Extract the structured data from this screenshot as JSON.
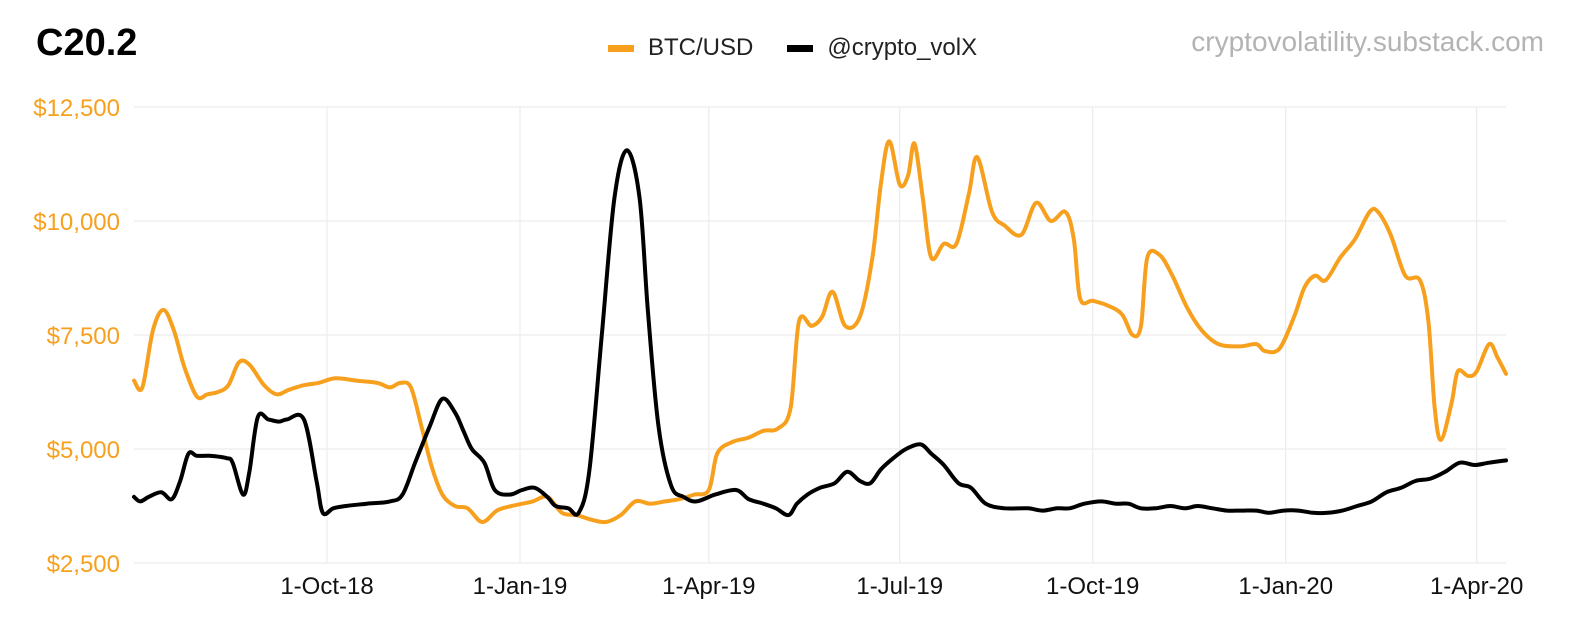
{
  "header": {
    "title": "C20.2",
    "source": "cryptovolatility.substack.com"
  },
  "chart_data": {
    "type": "line",
    "legend_position": "top-center",
    "grid": true,
    "ylim": [
      2500,
      12500
    ],
    "xlim": [
      "2018-07-01",
      "2020-04-15"
    ],
    "y_ticks": [
      {
        "value": 2500,
        "label": "$2,500"
      },
      {
        "value": 5000,
        "label": "$5,000"
      },
      {
        "value": 7500,
        "label": "$7,500"
      },
      {
        "value": 10000,
        "label": "$10,000"
      },
      {
        "value": 12500,
        "label": "$12,500"
      }
    ],
    "x_ticks": [
      {
        "value": "2018-10-01",
        "label": "1-Oct-18"
      },
      {
        "value": "2019-01-01",
        "label": "1-Jan-19"
      },
      {
        "value": "2019-04-01",
        "label": "1-Apr-19"
      },
      {
        "value": "2019-07-01",
        "label": "1-Jul-19"
      },
      {
        "value": "2019-10-01",
        "label": "1-Oct-19"
      },
      {
        "value": "2020-01-01",
        "label": "1-Jan-20"
      },
      {
        "value": "2020-04-01",
        "label": "1-Apr-20"
      }
    ],
    "series": [
      {
        "name": "BTC/USD",
        "color": "#f7a01e",
        "points": [
          [
            "2018-07-01",
            6500
          ],
          [
            "2018-07-05",
            6350
          ],
          [
            "2018-07-10",
            7600
          ],
          [
            "2018-07-15",
            8050
          ],
          [
            "2018-07-20",
            7600
          ],
          [
            "2018-07-25",
            6800
          ],
          [
            "2018-07-31",
            6150
          ],
          [
            "2018-08-05",
            6200
          ],
          [
            "2018-08-10",
            6250
          ],
          [
            "2018-08-15",
            6400
          ],
          [
            "2018-08-20",
            6900
          ],
          [
            "2018-08-25",
            6850
          ],
          [
            "2018-09-01",
            6400
          ],
          [
            "2018-09-07",
            6200
          ],
          [
            "2018-09-13",
            6300
          ],
          [
            "2018-09-20",
            6400
          ],
          [
            "2018-09-27",
            6450
          ],
          [
            "2018-10-05",
            6550
          ],
          [
            "2018-10-15",
            6500
          ],
          [
            "2018-10-25",
            6450
          ],
          [
            "2018-10-31",
            6350
          ],
          [
            "2018-11-05",
            6450
          ],
          [
            "2018-11-10",
            6350
          ],
          [
            "2018-11-15",
            5500
          ],
          [
            "2018-11-20",
            4600
          ],
          [
            "2018-11-25",
            4000
          ],
          [
            "2018-12-01",
            3750
          ],
          [
            "2018-12-07",
            3700
          ],
          [
            "2018-12-14",
            3400
          ],
          [
            "2018-12-21",
            3650
          ],
          [
            "2018-12-28",
            3750
          ],
          [
            "2019-01-07",
            3850
          ],
          [
            "2019-01-14",
            3950
          ],
          [
            "2019-01-21",
            3600
          ],
          [
            "2019-01-28",
            3550
          ],
          [
            "2019-02-04",
            3450
          ],
          [
            "2019-02-11",
            3400
          ],
          [
            "2019-02-18",
            3550
          ],
          [
            "2019-02-25",
            3850
          ],
          [
            "2019-03-04",
            3800
          ],
          [
            "2019-03-11",
            3850
          ],
          [
            "2019-03-18",
            3900
          ],
          [
            "2019-03-25",
            4000
          ],
          [
            "2019-04-01",
            4100
          ],
          [
            "2019-04-05",
            4900
          ],
          [
            "2019-04-12",
            5150
          ],
          [
            "2019-04-20",
            5250
          ],
          [
            "2019-04-27",
            5400
          ],
          [
            "2019-05-04",
            5450
          ],
          [
            "2019-05-10",
            5900
          ],
          [
            "2019-05-14",
            7800
          ],
          [
            "2019-05-20",
            7700
          ],
          [
            "2019-05-25",
            7900
          ],
          [
            "2019-05-30",
            8450
          ],
          [
            "2019-06-05",
            7700
          ],
          [
            "2019-06-12",
            7900
          ],
          [
            "2019-06-18",
            9200
          ],
          [
            "2019-06-22",
            10800
          ],
          [
            "2019-06-26",
            11750
          ],
          [
            "2019-07-01",
            10800
          ],
          [
            "2019-07-05",
            11000
          ],
          [
            "2019-07-08",
            11700
          ],
          [
            "2019-07-12",
            10500
          ],
          [
            "2019-07-16",
            9200
          ],
          [
            "2019-07-22",
            9500
          ],
          [
            "2019-07-28",
            9500
          ],
          [
            "2019-08-03",
            10600
          ],
          [
            "2019-08-07",
            11400
          ],
          [
            "2019-08-14",
            10200
          ],
          [
            "2019-08-20",
            9900
          ],
          [
            "2019-08-28",
            9700
          ],
          [
            "2019-09-04",
            10400
          ],
          [
            "2019-09-11",
            10000
          ],
          [
            "2019-09-18",
            10200
          ],
          [
            "2019-09-22",
            9600
          ],
          [
            "2019-09-25",
            8300
          ],
          [
            "2019-10-01",
            8250
          ],
          [
            "2019-10-08",
            8150
          ],
          [
            "2019-10-15",
            7950
          ],
          [
            "2019-10-20",
            7500
          ],
          [
            "2019-10-24",
            7700
          ],
          [
            "2019-10-27",
            9200
          ],
          [
            "2019-11-02",
            9250
          ],
          [
            "2019-11-08",
            8800
          ],
          [
            "2019-11-15",
            8100
          ],
          [
            "2019-11-22",
            7600
          ],
          [
            "2019-11-30",
            7300
          ],
          [
            "2019-12-10",
            7250
          ],
          [
            "2019-12-18",
            7300
          ],
          [
            "2019-12-22",
            7150
          ],
          [
            "2019-12-29",
            7200
          ],
          [
            "2020-01-05",
            7900
          ],
          [
            "2020-01-10",
            8550
          ],
          [
            "2020-01-15",
            8800
          ],
          [
            "2020-01-20",
            8700
          ],
          [
            "2020-01-27",
            9200
          ],
          [
            "2020-02-03",
            9600
          ],
          [
            "2020-02-10",
            10200
          ],
          [
            "2020-02-14",
            10200
          ],
          [
            "2020-02-20",
            9700
          ],
          [
            "2020-02-27",
            8800
          ],
          [
            "2020-03-05",
            8700
          ],
          [
            "2020-03-09",
            7800
          ],
          [
            "2020-03-12",
            5900
          ],
          [
            "2020-03-15",
            5200
          ],
          [
            "2020-03-20",
            6000
          ],
          [
            "2020-03-23",
            6700
          ],
          [
            "2020-03-28",
            6600
          ],
          [
            "2020-04-01",
            6700
          ],
          [
            "2020-04-07",
            7300
          ],
          [
            "2020-04-11",
            7000
          ],
          [
            "2020-04-15",
            6650
          ]
        ]
      },
      {
        "name": "@crypto_volX",
        "color": "#000000",
        "points": [
          [
            "2018-07-01",
            3950
          ],
          [
            "2018-07-04",
            3850
          ],
          [
            "2018-07-08",
            3950
          ],
          [
            "2018-07-14",
            4050
          ],
          [
            "2018-07-19",
            3900
          ],
          [
            "2018-07-23",
            4300
          ],
          [
            "2018-07-27",
            4900
          ],
          [
            "2018-07-31",
            4850
          ],
          [
            "2018-08-06",
            4850
          ],
          [
            "2018-08-14",
            4800
          ],
          [
            "2018-08-17",
            4700
          ],
          [
            "2018-08-22",
            4000
          ],
          [
            "2018-08-25",
            4500
          ],
          [
            "2018-08-29",
            5700
          ],
          [
            "2018-09-03",
            5650
          ],
          [
            "2018-09-08",
            5600
          ],
          [
            "2018-09-12",
            5650
          ],
          [
            "2018-09-20",
            5650
          ],
          [
            "2018-09-26",
            4300
          ],
          [
            "2018-09-29",
            3600
          ],
          [
            "2018-10-04",
            3700
          ],
          [
            "2018-10-10",
            3750
          ],
          [
            "2018-10-20",
            3800
          ],
          [
            "2018-10-31",
            3850
          ],
          [
            "2018-11-06",
            4000
          ],
          [
            "2018-11-12",
            4700
          ],
          [
            "2018-11-19",
            5500
          ],
          [
            "2018-11-25",
            6100
          ],
          [
            "2018-12-01",
            5800
          ],
          [
            "2018-12-05",
            5400
          ],
          [
            "2018-12-09",
            5000
          ],
          [
            "2018-12-15",
            4700
          ],
          [
            "2018-12-20",
            4100
          ],
          [
            "2018-12-27",
            4000
          ],
          [
            "2019-01-02",
            4100
          ],
          [
            "2019-01-08",
            4150
          ],
          [
            "2019-01-14",
            3950
          ],
          [
            "2019-01-18",
            3750
          ],
          [
            "2019-01-24",
            3700
          ],
          [
            "2019-01-29",
            3600
          ],
          [
            "2019-02-03",
            4500
          ],
          [
            "2019-02-09",
            7500
          ],
          [
            "2019-02-15",
            10500
          ],
          [
            "2019-02-21",
            11550
          ],
          [
            "2019-02-27",
            10500
          ],
          [
            "2019-03-03",
            8000
          ],
          [
            "2019-03-08",
            5500
          ],
          [
            "2019-03-14",
            4200
          ],
          [
            "2019-03-20",
            3950
          ],
          [
            "2019-03-26",
            3850
          ],
          [
            "2019-04-04",
            4000
          ],
          [
            "2019-04-14",
            4100
          ],
          [
            "2019-04-20",
            3900
          ],
          [
            "2019-04-27",
            3800
          ],
          [
            "2019-05-03",
            3700
          ],
          [
            "2019-05-09",
            3550
          ],
          [
            "2019-05-13",
            3800
          ],
          [
            "2019-05-18",
            4000
          ],
          [
            "2019-05-24",
            4150
          ],
          [
            "2019-05-31",
            4250
          ],
          [
            "2019-06-06",
            4500
          ],
          [
            "2019-06-12",
            4300
          ],
          [
            "2019-06-17",
            4250
          ],
          [
            "2019-06-22",
            4550
          ],
          [
            "2019-06-28",
            4800
          ],
          [
            "2019-07-04",
            5000
          ],
          [
            "2019-07-11",
            5100
          ],
          [
            "2019-07-16",
            4900
          ],
          [
            "2019-07-22",
            4650
          ],
          [
            "2019-07-29",
            4250
          ],
          [
            "2019-08-04",
            4150
          ],
          [
            "2019-08-11",
            3800
          ],
          [
            "2019-08-20",
            3700
          ],
          [
            "2019-08-31",
            3700
          ],
          [
            "2019-09-07",
            3650
          ],
          [
            "2019-09-14",
            3700
          ],
          [
            "2019-09-20",
            3700
          ],
          [
            "2019-09-27",
            3800
          ],
          [
            "2019-10-05",
            3850
          ],
          [
            "2019-10-12",
            3800
          ],
          [
            "2019-10-18",
            3800
          ],
          [
            "2019-10-24",
            3700
          ],
          [
            "2019-10-31",
            3700
          ],
          [
            "2019-11-07",
            3750
          ],
          [
            "2019-11-14",
            3700
          ],
          [
            "2019-11-20",
            3750
          ],
          [
            "2019-11-27",
            3700
          ],
          [
            "2019-12-04",
            3650
          ],
          [
            "2019-12-11",
            3650
          ],
          [
            "2019-12-18",
            3650
          ],
          [
            "2019-12-24",
            3600
          ],
          [
            "2019-12-31",
            3650
          ],
          [
            "2020-01-07",
            3650
          ],
          [
            "2020-01-14",
            3600
          ],
          [
            "2020-01-21",
            3600
          ],
          [
            "2020-01-28",
            3650
          ],
          [
            "2020-02-04",
            3750
          ],
          [
            "2020-02-11",
            3850
          ],
          [
            "2020-02-18",
            4050
          ],
          [
            "2020-02-25",
            4150
          ],
          [
            "2020-03-03",
            4300
          ],
          [
            "2020-03-10",
            4350
          ],
          [
            "2020-03-17",
            4500
          ],
          [
            "2020-03-24",
            4700
          ],
          [
            "2020-03-31",
            4650
          ],
          [
            "2020-04-07",
            4700
          ],
          [
            "2020-04-15",
            4750
          ]
        ]
      }
    ]
  }
}
